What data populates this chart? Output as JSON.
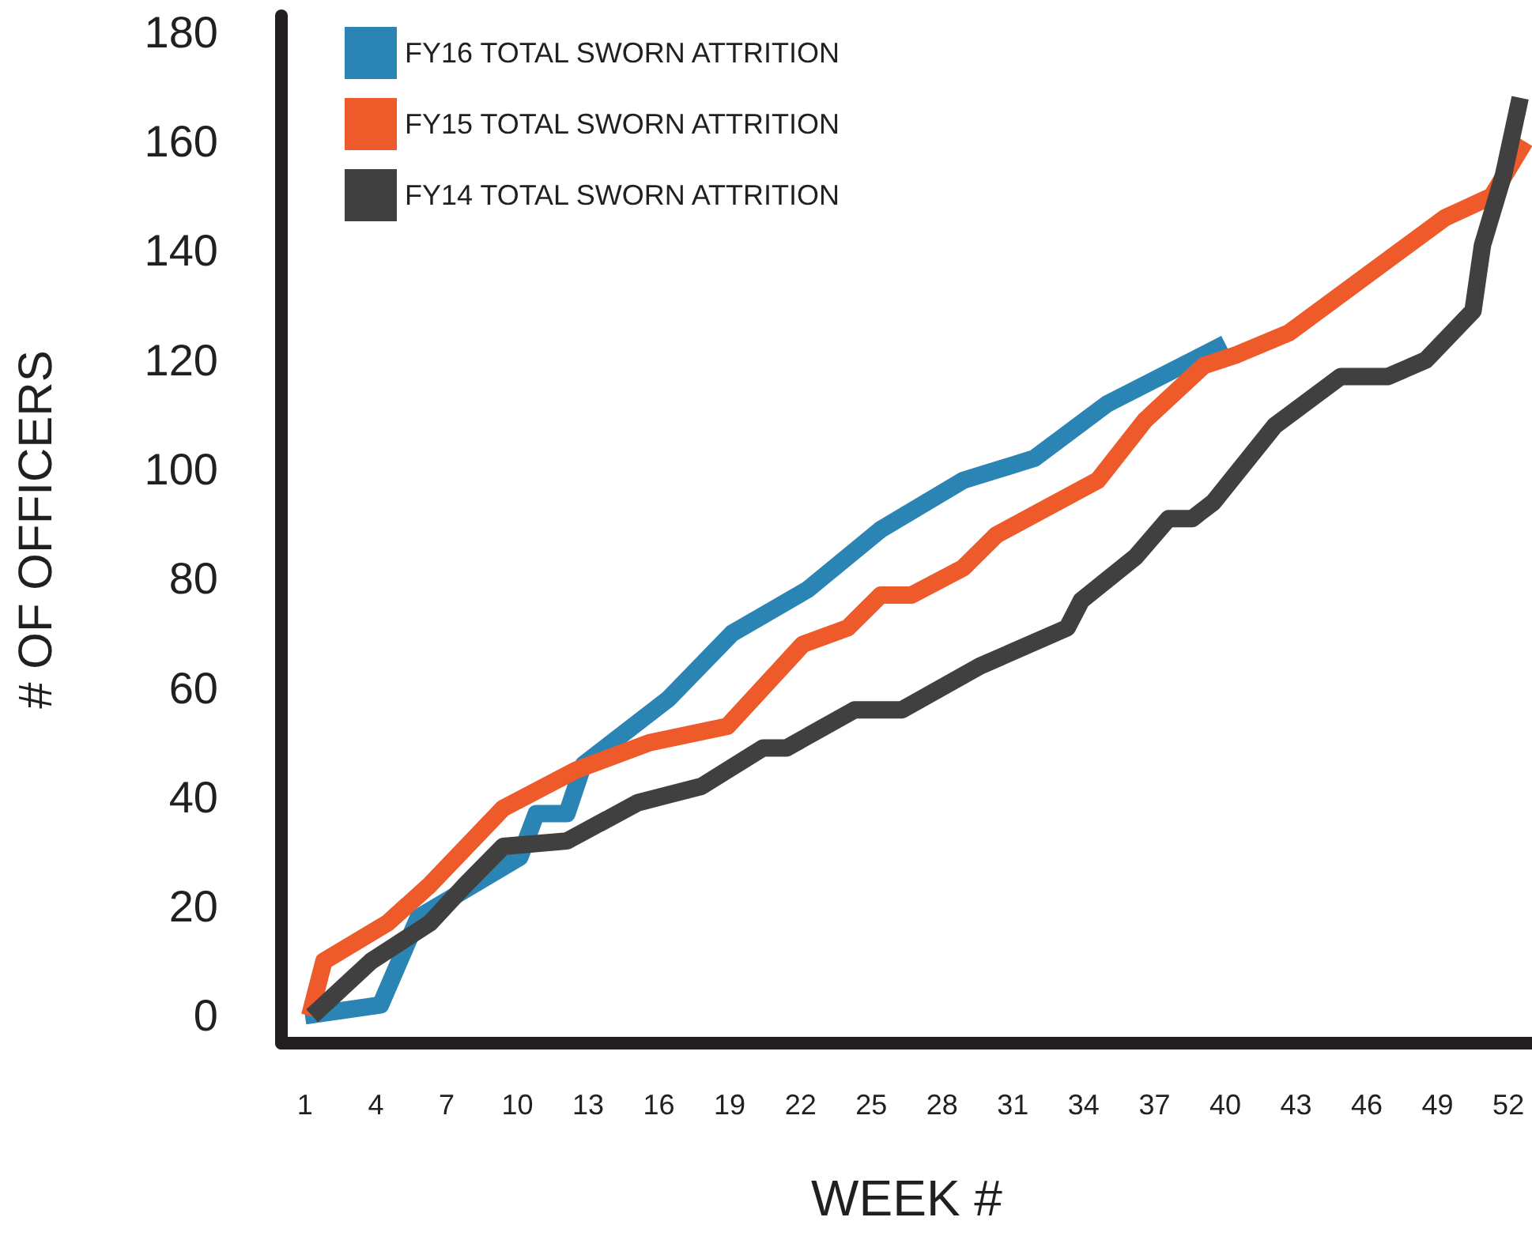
{
  "chart_data": {
    "type": "line",
    "xlabel": "WEEK #",
    "ylabel": "# OF OFFICERS",
    "xlim": [
      0,
      53
    ],
    "xticks": [
      1,
      4,
      7,
      10,
      13,
      16,
      19,
      22,
      25,
      28,
      31,
      34,
      37,
      40,
      43,
      46,
      49,
      52
    ],
    "ylim": [
      -5,
      183
    ],
    "yticks": [
      0,
      20,
      40,
      60,
      80,
      100,
      120,
      140,
      160,
      180
    ],
    "grid": false,
    "legend": "top left",
    "marker": "none",
    "line_style": "solid",
    "series": [
      {
        "name": "FY16 TOTAL SWORN ATTRITION",
        "color": "#2a85b5",
        "x": [
          1,
          4.2,
          5.8,
          10.1,
          10.8,
          12.1,
          12.8,
          16.4,
          19.1,
          22.3,
          25.4,
          28.9,
          31.9,
          35,
          40
        ],
        "values": [
          0,
          2,
          18,
          29,
          37,
          37,
          46,
          58,
          70,
          78,
          89,
          98,
          102,
          112,
          123
        ]
      },
      {
        "name": "FY15 TOTAL SWORN ATTRITION",
        "color": "#ee5a2a",
        "x": [
          1.2,
          1.8,
          4.5,
          6.3,
          9.4,
          12.5,
          15.6,
          18.9,
          22.1,
          24,
          25.4,
          26.7,
          28.9,
          30.3,
          34.6,
          36.6,
          39.1,
          40.5,
          42.7,
          49.3,
          51.3,
          52.7
        ],
        "values": [
          0,
          10,
          17,
          24,
          38,
          45,
          50,
          53,
          68,
          71,
          77,
          77,
          82,
          88,
          98,
          109,
          119,
          121,
          125,
          146,
          150,
          160
        ]
      },
      {
        "name": "FY14 TOTAL SWORN ATTRITION",
        "color": "#404040",
        "x": [
          1.3,
          3.8,
          6.3,
          7.8,
          9.4,
          12.1,
          15.1,
          17.8,
          20.4,
          21.4,
          24.3,
          26.3,
          29.6,
          33.3,
          33.9,
          36.2,
          37.6,
          38.6,
          39.5,
          42.1,
          44.9,
          46.9,
          48.5,
          50.5,
          50.9,
          51.8,
          52.5
        ],
        "values": [
          0,
          10,
          17,
          24,
          31,
          32,
          39,
          42,
          49,
          49,
          56,
          56,
          64,
          71,
          76,
          84,
          91,
          91,
          94,
          108,
          117,
          117,
          120,
          129,
          141,
          154,
          168
        ]
      }
    ]
  }
}
